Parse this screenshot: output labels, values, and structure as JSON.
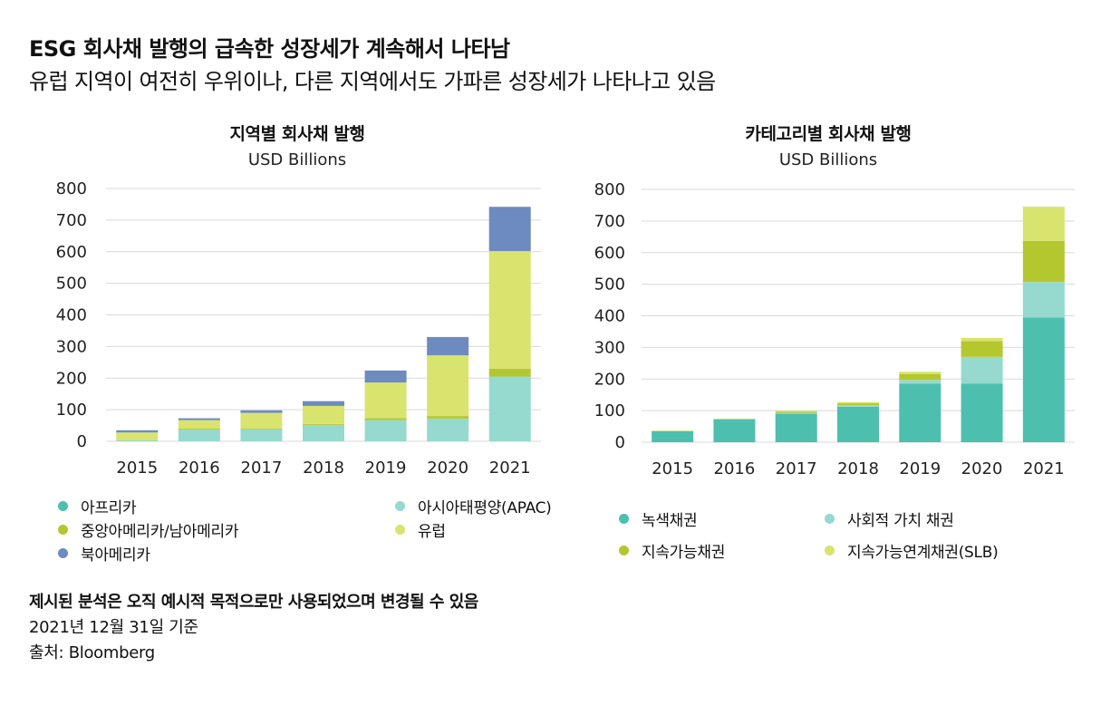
{
  "header": {
    "title": "ESG 회사채 발행의 급속한 성장세가 계속해서 나타남",
    "subtitle": "유럽 지역이 여전히 우위이나, 다른 지역에서도 가파른 성장세가 나타나고 있음"
  },
  "footer": {
    "note": "제시된 분석은 오직 예시적 목적으로만 사용되었으며 변경될 수 있음",
    "date": "2021년 12월 31일 기준",
    "source": "출처: Bloomberg"
  },
  "colors": {
    "teal": "#4dbfae",
    "light_teal": "#96d9cf",
    "olive": "#b5c72e",
    "light_green": "#d8e46e",
    "blue": "#6e8bbf",
    "grid": "#d9d9d9"
  },
  "chart_data": [
    {
      "type": "bar",
      "stacked": true,
      "title": "지역별 회사채 발행",
      "subtitle": "USD Billions",
      "categories": [
        "2015",
        "2016",
        "2017",
        "2018",
        "2019",
        "2020",
        "2021"
      ],
      "ylim": [
        0,
        800
      ],
      "yticks": [
        "0",
        "100",
        "200",
        "300",
        "400",
        "500",
        "600",
        "700",
        "800"
      ],
      "grid": true,
      "legend_position": "bottom",
      "series": [
        {
          "name": "아프리카",
          "color": "#4dbfae",
          "values": [
            0,
            0,
            0,
            0,
            0,
            0,
            0
          ]
        },
        {
          "name": "아시아태평양(APAC)",
          "color": "#96d9cf",
          "values": [
            3,
            37,
            38,
            52,
            67,
            72,
            205
          ]
        },
        {
          "name": "중앙아메리카/남아메리카",
          "color": "#b5c72e",
          "values": [
            0,
            3,
            2,
            3,
            6,
            8,
            25
          ]
        },
        {
          "name": "유럽",
          "color": "#d8e46e",
          "values": [
            25,
            27,
            50,
            57,
            113,
            192,
            372
          ]
        },
        {
          "name": "북아메리카",
          "color": "#6e8bbf",
          "values": [
            7,
            6,
            8,
            15,
            38,
            58,
            140
          ]
        }
      ],
      "legend_layout": [
        [
          "아프리카",
          "아시아태평양(APAC)"
        ],
        [
          "중앙아메리카/남아메리카",
          "유럽"
        ],
        [
          "북아메리카"
        ]
      ]
    },
    {
      "type": "bar",
      "stacked": true,
      "title": "카테고리별 회사채 발행",
      "subtitle": "USD Billions",
      "categories": [
        "2015",
        "2016",
        "2017",
        "2018",
        "2019",
        "2020",
        "2021"
      ],
      "ylim": [
        0,
        800
      ],
      "yticks": [
        "0",
        "100",
        "200",
        "300",
        "400",
        "500",
        "600",
        "700",
        "800"
      ],
      "grid": true,
      "legend_position": "bottom",
      "series": [
        {
          "name": "녹색채권",
          "color": "#4dbfae",
          "values": [
            35,
            72,
            90,
            112,
            185,
            185,
            395
          ]
        },
        {
          "name": "사회적 가치 채권",
          "color": "#96d9cf",
          "values": [
            0,
            1,
            3,
            5,
            12,
            85,
            112
          ]
        },
        {
          "name": "지속가능채권",
          "color": "#b5c72e",
          "values": [
            0,
            1,
            3,
            6,
            18,
            50,
            130
          ]
        },
        {
          "name": "지속가능연계채권(SLB)",
          "color": "#d8e46e",
          "values": [
            2,
            1,
            4,
            4,
            8,
            10,
            108
          ]
        }
      ],
      "legend_layout": [
        [
          "녹색채권",
          "사회적 가치 채권"
        ],
        [
          "지속가능채권",
          "지속가능연계채권(SLB)"
        ]
      ]
    }
  ]
}
